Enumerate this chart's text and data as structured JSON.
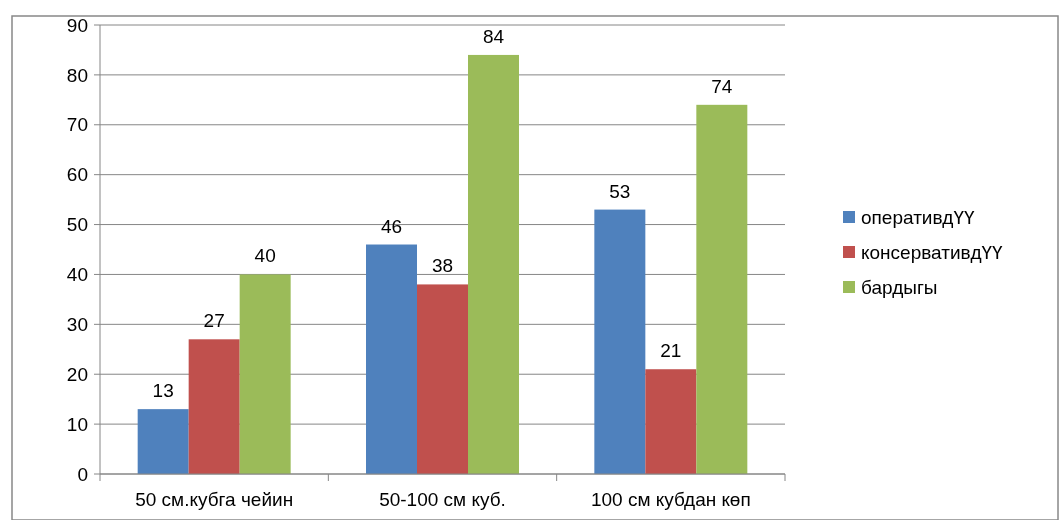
{
  "chart_data": {
    "type": "bar",
    "categories": [
      "50 см.кубга чейин",
      "50-100 см куб.",
      "100 см кубдан көп"
    ],
    "series": [
      {
        "name": "оперативдҮҮ",
        "color": "#4f81bd",
        "values": [
          13,
          46,
          53
        ]
      },
      {
        "name": "консервативдҮҮ",
        "color": "#c0504d",
        "values": [
          27,
          38,
          21
        ]
      },
      {
        "name": "бардыгы",
        "color": "#9bbb59",
        "values": [
          40,
          84,
          74
        ]
      }
    ],
    "ylim": [
      0,
      90
    ],
    "yticks": [
      0,
      10,
      20,
      30,
      40,
      50,
      60,
      70,
      80,
      90
    ],
    "grid": "y",
    "legend": "right",
    "data_labels": true
  }
}
